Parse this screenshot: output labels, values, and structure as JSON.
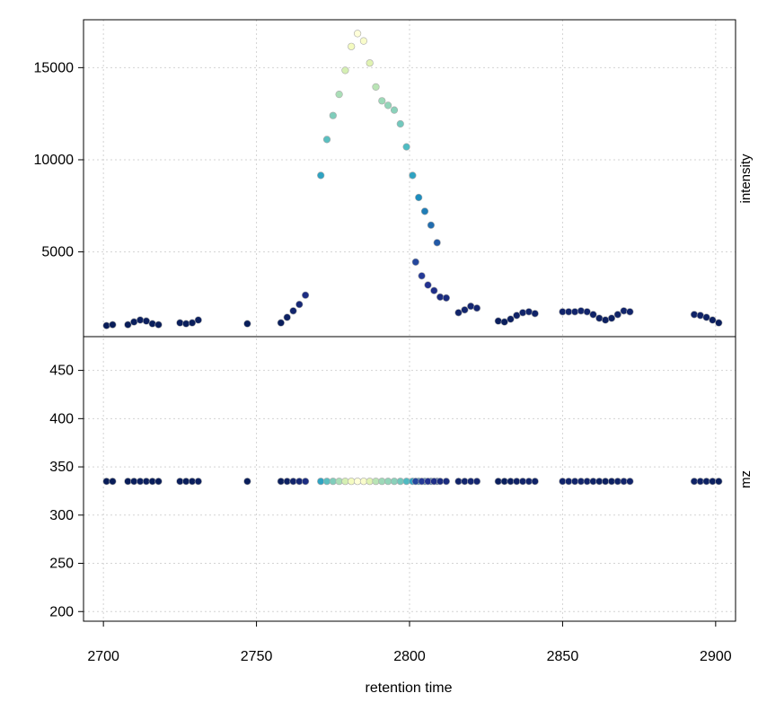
{
  "chart_data": [
    {
      "type": "scatter",
      "panel": "top",
      "ylabel": "intensity",
      "xlim": [
        2693.5,
        2906.5
      ],
      "ylim": [
        400,
        17600
      ],
      "yticks": [
        5000,
        10000,
        15000
      ],
      "grid": true,
      "color_scale": "intensity (YlGnBu, low = dark navy, high = pale yellow)",
      "points": [
        {
          "x": 2701,
          "y": 1000
        },
        {
          "x": 2703,
          "y": 1050
        },
        {
          "x": 2708,
          "y": 1050
        },
        {
          "x": 2710,
          "y": 1200
        },
        {
          "x": 2712,
          "y": 1300
        },
        {
          "x": 2714,
          "y": 1250
        },
        {
          "x": 2716,
          "y": 1100
        },
        {
          "x": 2718,
          "y": 1050
        },
        {
          "x": 2725,
          "y": 1150
        },
        {
          "x": 2727,
          "y": 1100
        },
        {
          "x": 2729,
          "y": 1150
        },
        {
          "x": 2731,
          "y": 1300
        },
        {
          "x": 2747,
          "y": 1100
        },
        {
          "x": 2758,
          "y": 1150
        },
        {
          "x": 2760,
          "y": 1450
        },
        {
          "x": 2762,
          "y": 1800
        },
        {
          "x": 2764,
          "y": 2150
        },
        {
          "x": 2766,
          "y": 2650
        },
        {
          "x": 2771,
          "y": 9150
        },
        {
          "x": 2773,
          "y": 11100
        },
        {
          "x": 2775,
          "y": 12400
        },
        {
          "x": 2777,
          "y": 13550
        },
        {
          "x": 2779,
          "y": 14850
        },
        {
          "x": 2781,
          "y": 16150
        },
        {
          "x": 2783,
          "y": 16850
        },
        {
          "x": 2785,
          "y": 16450
        },
        {
          "x": 2787,
          "y": 15250
        },
        {
          "x": 2789,
          "y": 13950
        },
        {
          "x": 2791,
          "y": 13200
        },
        {
          "x": 2793,
          "y": 12950
        },
        {
          "x": 2795,
          "y": 12700
        },
        {
          "x": 2797,
          "y": 11950
        },
        {
          "x": 2799,
          "y": 10700
        },
        {
          "x": 2801,
          "y": 9150
        },
        {
          "x": 2803,
          "y": 7950
        },
        {
          "x": 2805,
          "y": 7200
        },
        {
          "x": 2807,
          "y": 6450
        },
        {
          "x": 2809,
          "y": 5500
        },
        {
          "x": 2802,
          "y": 4450
        },
        {
          "x": 2804,
          "y": 3700
        },
        {
          "x": 2806,
          "y": 3200
        },
        {
          "x": 2808,
          "y": 2900
        },
        {
          "x": 2810,
          "y": 2550
        },
        {
          "x": 2812,
          "y": 2500
        },
        {
          "x": 2816,
          "y": 1700
        },
        {
          "x": 2818,
          "y": 1850
        },
        {
          "x": 2820,
          "y": 2050
        },
        {
          "x": 2822,
          "y": 1950
        },
        {
          "x": 2829,
          "y": 1250
        },
        {
          "x": 2831,
          "y": 1200
        },
        {
          "x": 2833,
          "y": 1350
        },
        {
          "x": 2835,
          "y": 1550
        },
        {
          "x": 2837,
          "y": 1700
        },
        {
          "x": 2839,
          "y": 1750
        },
        {
          "x": 2841,
          "y": 1650
        },
        {
          "x": 2850,
          "y": 1750
        },
        {
          "x": 2852,
          "y": 1750
        },
        {
          "x": 2854,
          "y": 1750
        },
        {
          "x": 2856,
          "y": 1800
        },
        {
          "x": 2858,
          "y": 1750
        },
        {
          "x": 2860,
          "y": 1600
        },
        {
          "x": 2862,
          "y": 1400
        },
        {
          "x": 2864,
          "y": 1300
        },
        {
          "x": 2866,
          "y": 1400
        },
        {
          "x": 2868,
          "y": 1600
        },
        {
          "x": 2870,
          "y": 1800
        },
        {
          "x": 2872,
          "y": 1750
        },
        {
          "x": 2893,
          "y": 1600
        },
        {
          "x": 2895,
          "y": 1550
        },
        {
          "x": 2897,
          "y": 1450
        },
        {
          "x": 2899,
          "y": 1300
        },
        {
          "x": 2901,
          "y": 1150
        }
      ]
    },
    {
      "type": "scatter",
      "panel": "bottom",
      "xlabel": "retention time",
      "ylabel": "mz",
      "xlim": [
        2693.5,
        2906.5
      ],
      "ylim": [
        190,
        485
      ],
      "xticks": [
        2700,
        2750,
        2800,
        2850,
        2900
      ],
      "yticks": [
        200,
        250,
        300,
        350,
        400,
        450
      ],
      "grid": true,
      "mz": 335,
      "note": "one point per retention time, coloured by the intensity in the top panel"
    }
  ]
}
